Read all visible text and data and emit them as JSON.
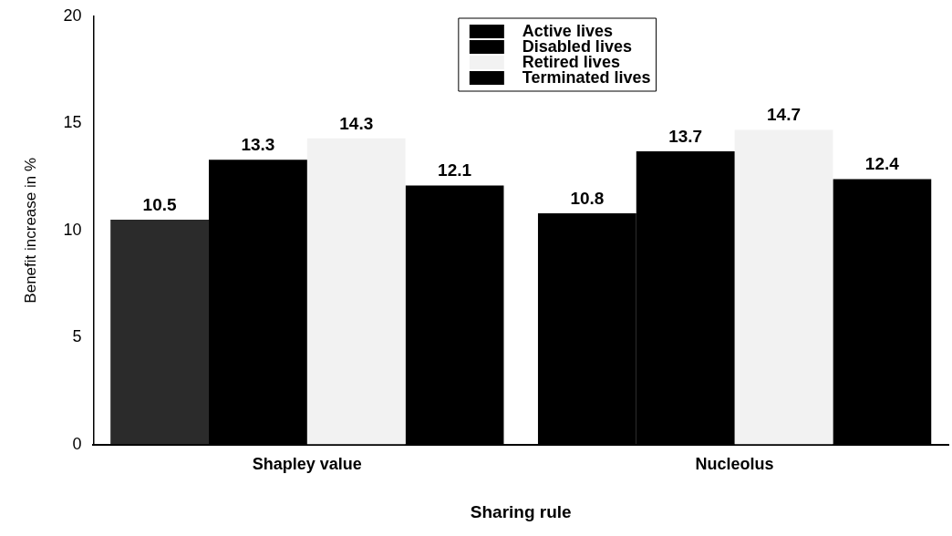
{
  "chart_data": {
    "type": "bar",
    "xlabel": "Sharing rule",
    "ylabel": "Benefit increase in %",
    "categories": [
      "Shapley value",
      "Nucleolus"
    ],
    "series": [
      {
        "name": "Active lives",
        "color": "#000000",
        "colors": [
          "#2b2b2b",
          "#000000"
        ],
        "values": [
          10.5,
          10.8
        ]
      },
      {
        "name": "Disabled lives",
        "color": "#000000",
        "values": [
          13.3,
          13.7
        ]
      },
      {
        "name": "Retired lives",
        "color": "#f2f2f2",
        "values": [
          14.3,
          14.7
        ]
      },
      {
        "name": "Terminated lives",
        "color": "#000000",
        "values": [
          12.1,
          12.4
        ]
      }
    ],
    "ylim": [
      0,
      20
    ],
    "yticks": [
      0,
      5,
      10,
      15,
      20
    ],
    "data_labels": true,
    "legend": "top",
    "grid": false
  }
}
